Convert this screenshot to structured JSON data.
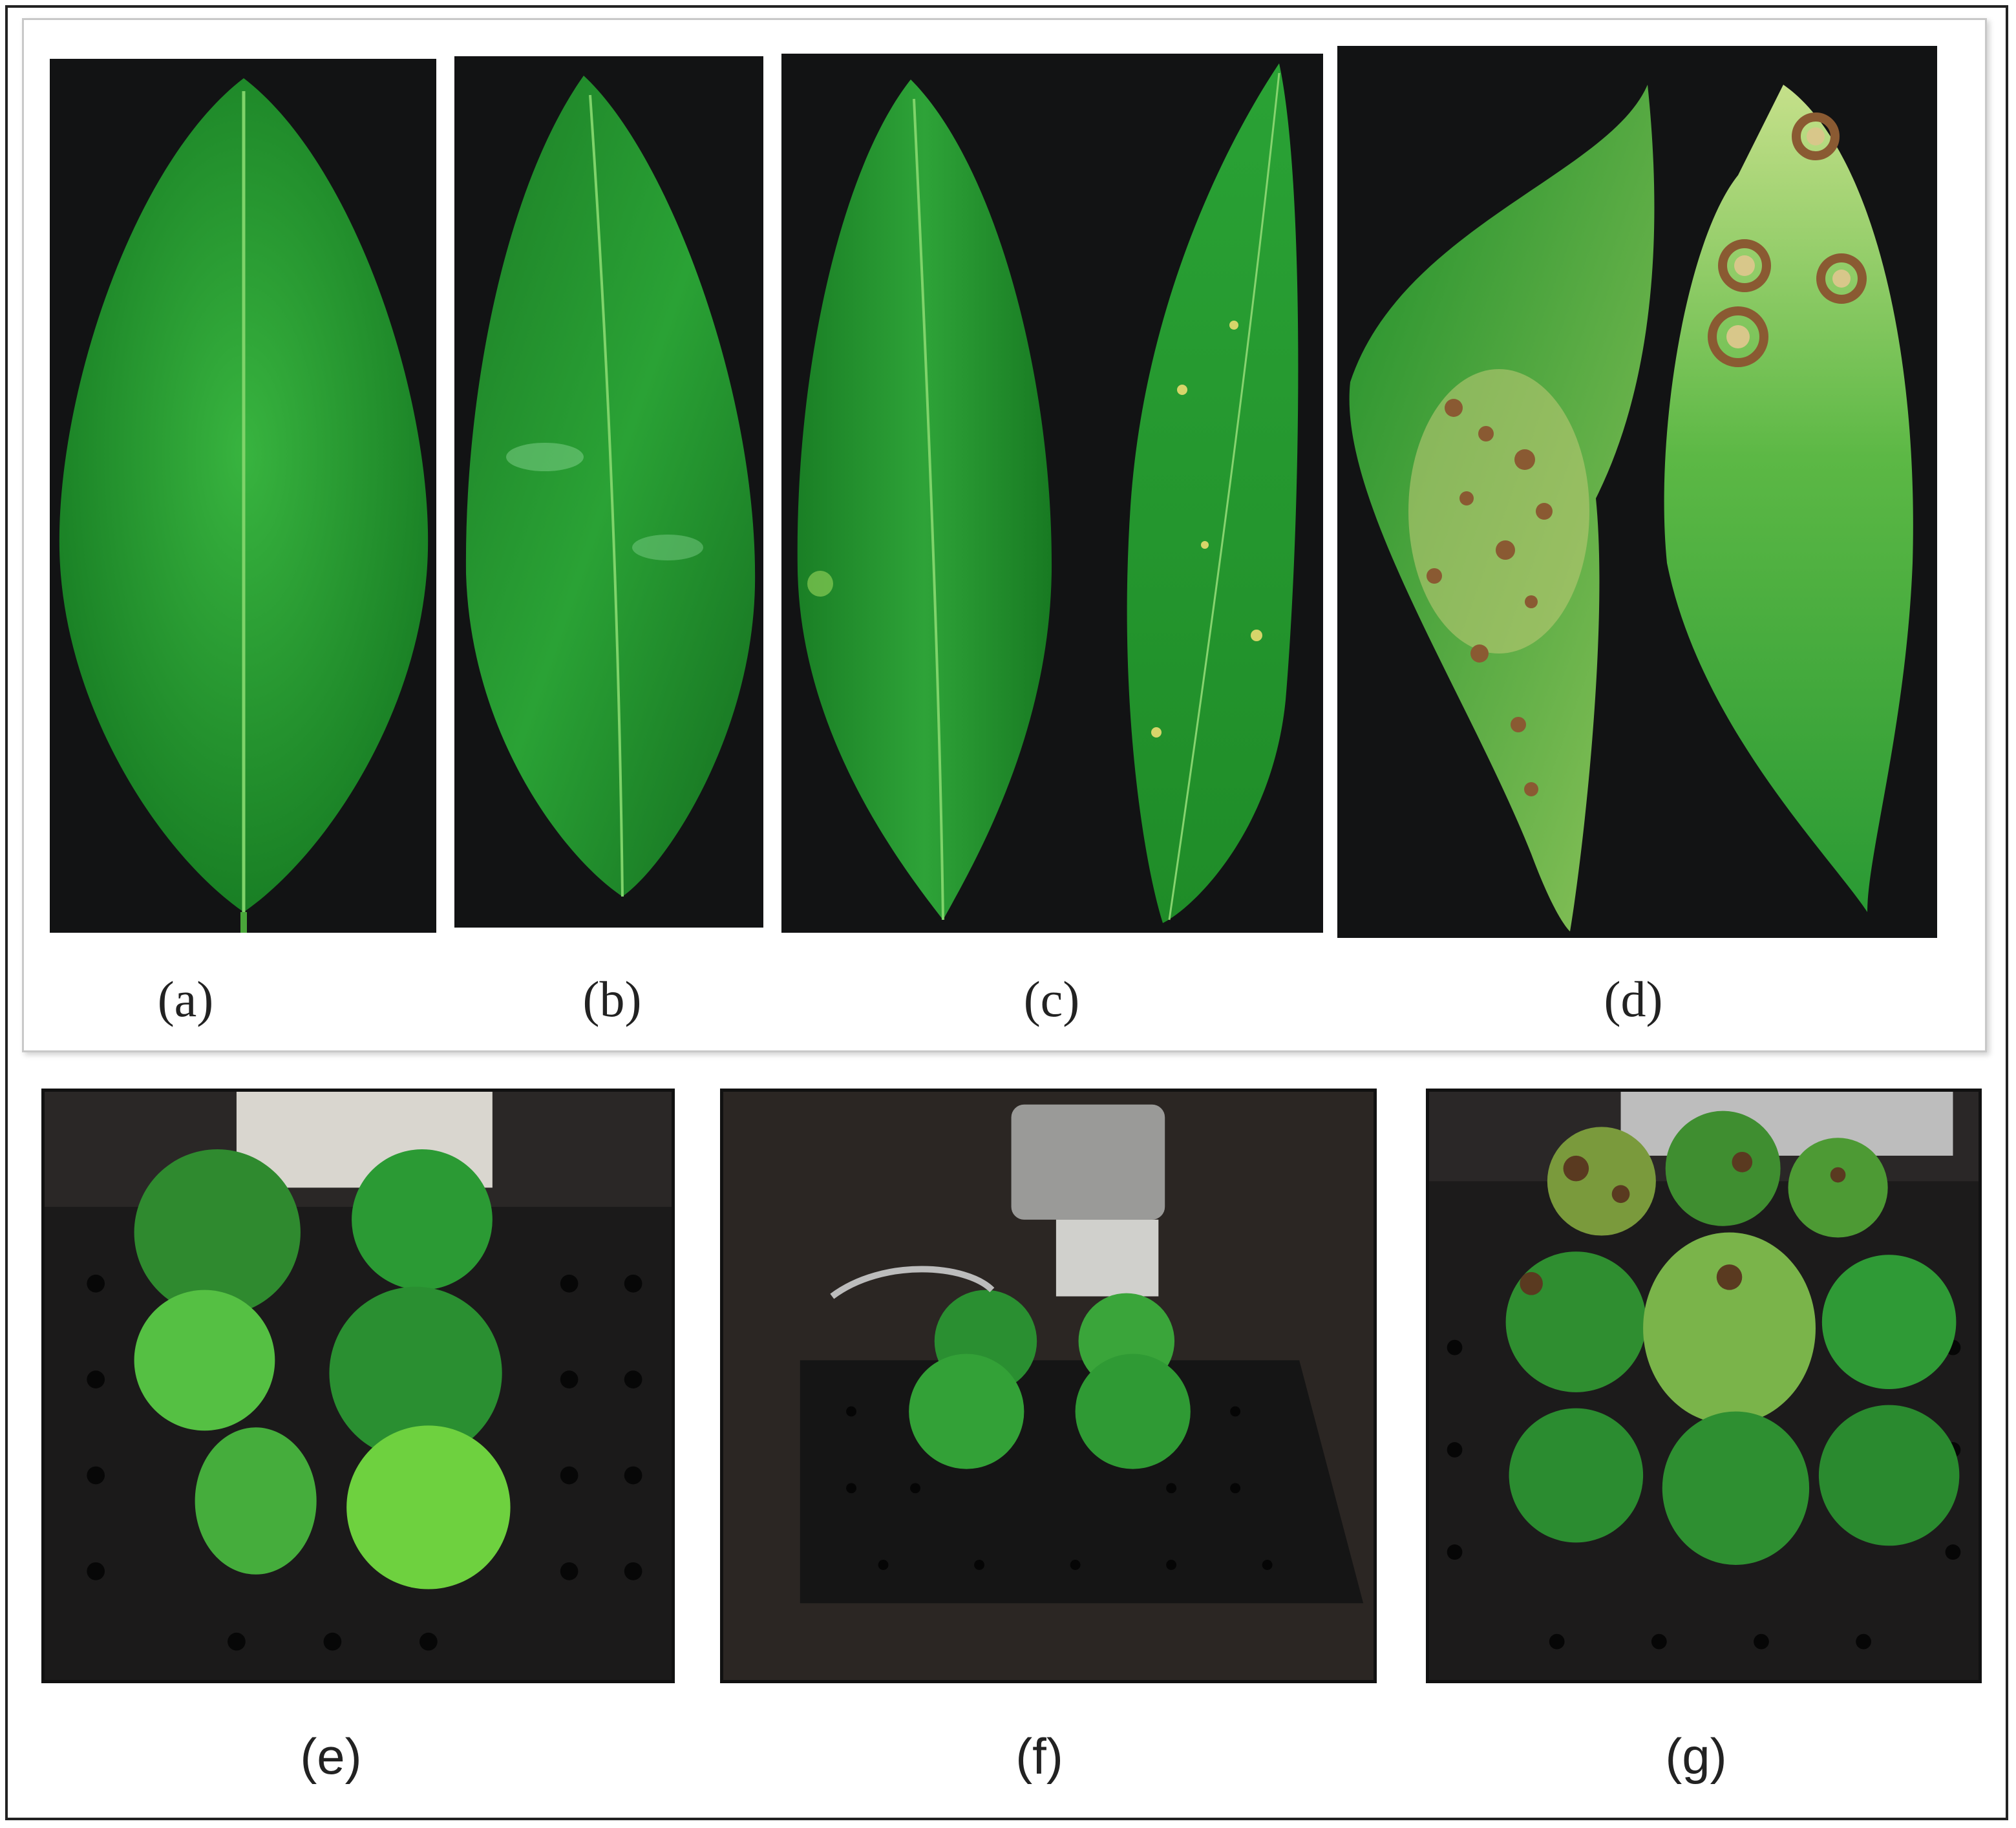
{
  "labels": {
    "a": "(a)",
    "b": "(b)",
    "c": "(c)",
    "d": "(d)",
    "e": "(e)",
    "f": "(f)",
    "g": "(g)"
  },
  "colors": {
    "leaf_green": "#1f9a2e",
    "background_dark": "#121314",
    "lesion_brown": "#8a5a32"
  }
}
